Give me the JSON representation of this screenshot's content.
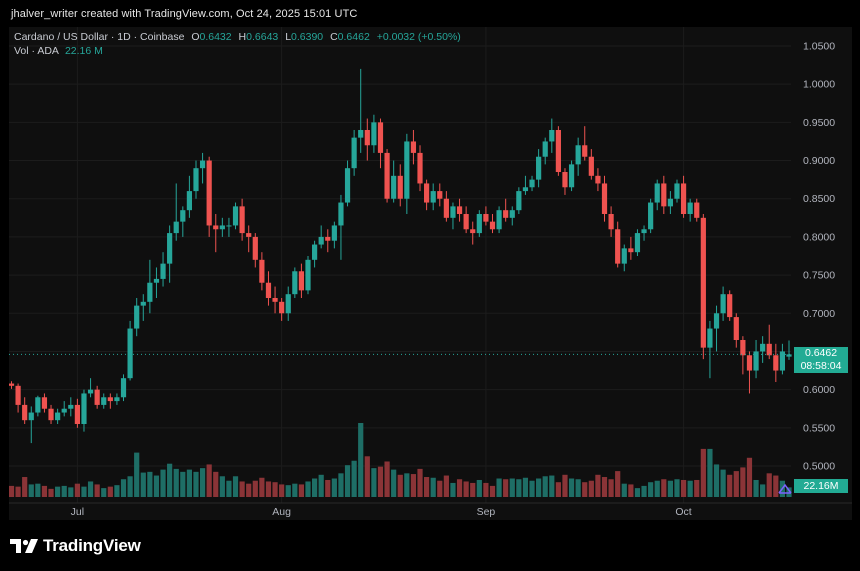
{
  "credit": "jhalver_writer created with TradingView.com, Oct 24, 2025 15:01 UTC",
  "legend": {
    "symbol": "Cardano / US Dollar · 1D · Coinbase",
    "open_label": "O",
    "open": "0.6432",
    "high_label": "H",
    "high": "0.6643",
    "low_label": "L",
    "low": "0.6390",
    "close_label": "C",
    "close": "0.6462",
    "change": "+0.0032 (+0.50%)",
    "vol_label": "Vol · ADA",
    "vol": "22.16 M"
  },
  "price_tag": {
    "price": "0.6462",
    "countdown": "08:58:04"
  },
  "volume_tag": "22.16M",
  "brand": "TradingView",
  "colors": {
    "up": "#26a69a",
    "down": "#ef5350",
    "up_vol": "#1e6e66",
    "down_vol": "#8b3437",
    "tag": "#22ab94"
  },
  "chart_data": {
    "type": "candlestick",
    "ylim": [
      0.46,
      1.07
    ],
    "yticks": [
      "1.0500",
      "1.0000",
      "0.9500",
      "0.9000",
      "0.8500",
      "0.8000",
      "0.7500",
      "0.7000",
      "0.6500",
      "0.6000",
      "0.5500",
      "0.5000"
    ],
    "xticks": [
      {
        "label": "Jul",
        "index": 10
      },
      {
        "label": "Aug",
        "index": 41
      },
      {
        "label": "Sep",
        "index": 72
      },
      {
        "label": "Oct",
        "index": 102
      }
    ],
    "last_price": 0.6462,
    "candles": [
      [
        0.608,
        0.611,
        0.601,
        0.605
      ],
      [
        0.605,
        0.608,
        0.57,
        0.58
      ],
      [
        0.58,
        0.59,
        0.555,
        0.56
      ],
      [
        0.56,
        0.578,
        0.53,
        0.57
      ],
      [
        0.57,
        0.592,
        0.565,
        0.59
      ],
      [
        0.59,
        0.595,
        0.57,
        0.575
      ],
      [
        0.575,
        0.58,
        0.555,
        0.56
      ],
      [
        0.56,
        0.575,
        0.555,
        0.57
      ],
      [
        0.57,
        0.585,
        0.565,
        0.575
      ],
      [
        0.575,
        0.59,
        0.565,
        0.58
      ],
      [
        0.58,
        0.588,
        0.55,
        0.555
      ],
      [
        0.555,
        0.6,
        0.545,
        0.595
      ],
      [
        0.595,
        0.615,
        0.59,
        0.6
      ],
      [
        0.6,
        0.605,
        0.575,
        0.58
      ],
      [
        0.58,
        0.595,
        0.575,
        0.59
      ],
      [
        0.59,
        0.595,
        0.575,
        0.585
      ],
      [
        0.585,
        0.595,
        0.58,
        0.59
      ],
      [
        0.59,
        0.62,
        0.585,
        0.615
      ],
      [
        0.615,
        0.69,
        0.612,
        0.68
      ],
      [
        0.68,
        0.72,
        0.67,
        0.71
      ],
      [
        0.71,
        0.725,
        0.69,
        0.715
      ],
      [
        0.715,
        0.77,
        0.7,
        0.74
      ],
      [
        0.74,
        0.76,
        0.72,
        0.745
      ],
      [
        0.745,
        0.78,
        0.735,
        0.765
      ],
      [
        0.765,
        0.815,
        0.74,
        0.805
      ],
      [
        0.805,
        0.87,
        0.795,
        0.82
      ],
      [
        0.82,
        0.84,
        0.8,
        0.835
      ],
      [
        0.835,
        0.88,
        0.825,
        0.86
      ],
      [
        0.86,
        0.9,
        0.85,
        0.89
      ],
      [
        0.89,
        0.91,
        0.87,
        0.9
      ],
      [
        0.9,
        0.905,
        0.8,
        0.815
      ],
      [
        0.815,
        0.83,
        0.78,
        0.81
      ],
      [
        0.81,
        0.825,
        0.8,
        0.815
      ],
      [
        0.815,
        0.825,
        0.8,
        0.815
      ],
      [
        0.815,
        0.845,
        0.81,
        0.84
      ],
      [
        0.84,
        0.85,
        0.795,
        0.805
      ],
      [
        0.805,
        0.815,
        0.78,
        0.8
      ],
      [
        0.8,
        0.805,
        0.76,
        0.77
      ],
      [
        0.77,
        0.78,
        0.73,
        0.74
      ],
      [
        0.74,
        0.755,
        0.71,
        0.72
      ],
      [
        0.72,
        0.735,
        0.7,
        0.715
      ],
      [
        0.715,
        0.72,
        0.69,
        0.7
      ],
      [
        0.7,
        0.735,
        0.69,
        0.725
      ],
      [
        0.725,
        0.76,
        0.72,
        0.755
      ],
      [
        0.755,
        0.765,
        0.72,
        0.73
      ],
      [
        0.73,
        0.775,
        0.725,
        0.77
      ],
      [
        0.77,
        0.795,
        0.76,
        0.79
      ],
      [
        0.79,
        0.815,
        0.785,
        0.8
      ],
      [
        0.8,
        0.81,
        0.78,
        0.795
      ],
      [
        0.795,
        0.82,
        0.785,
        0.815
      ],
      [
        0.815,
        0.855,
        0.77,
        0.845
      ],
      [
        0.845,
        0.9,
        0.84,
        0.89
      ],
      [
        0.89,
        0.94,
        0.88,
        0.93
      ],
      [
        0.93,
        1.02,
        0.91,
        0.94
      ],
      [
        0.94,
        0.955,
        0.9,
        0.92
      ],
      [
        0.92,
        0.96,
        0.91,
        0.95
      ],
      [
        0.95,
        0.955,
        0.89,
        0.91
      ],
      [
        0.91,
        0.915,
        0.845,
        0.85
      ],
      [
        0.85,
        0.9,
        0.845,
        0.88
      ],
      [
        0.88,
        0.895,
        0.84,
        0.85
      ],
      [
        0.85,
        0.935,
        0.83,
        0.925
      ],
      [
        0.925,
        0.94,
        0.895,
        0.91
      ],
      [
        0.91,
        0.92,
        0.86,
        0.87
      ],
      [
        0.87,
        0.875,
        0.835,
        0.845
      ],
      [
        0.845,
        0.87,
        0.835,
        0.86
      ],
      [
        0.86,
        0.87,
        0.84,
        0.85
      ],
      [
        0.85,
        0.86,
        0.82,
        0.825
      ],
      [
        0.825,
        0.845,
        0.81,
        0.84
      ],
      [
        0.84,
        0.85,
        0.82,
        0.83
      ],
      [
        0.83,
        0.84,
        0.805,
        0.81
      ],
      [
        0.81,
        0.82,
        0.79,
        0.805
      ],
      [
        0.805,
        0.835,
        0.8,
        0.83
      ],
      [
        0.83,
        0.84,
        0.815,
        0.82
      ],
      [
        0.82,
        0.83,
        0.805,
        0.81
      ],
      [
        0.81,
        0.84,
        0.805,
        0.835
      ],
      [
        0.835,
        0.85,
        0.82,
        0.825
      ],
      [
        0.825,
        0.84,
        0.815,
        0.835
      ],
      [
        0.835,
        0.865,
        0.83,
        0.86
      ],
      [
        0.86,
        0.88,
        0.855,
        0.865
      ],
      [
        0.865,
        0.88,
        0.86,
        0.875
      ],
      [
        0.875,
        0.915,
        0.865,
        0.905
      ],
      [
        0.905,
        0.93,
        0.895,
        0.925
      ],
      [
        0.925,
        0.955,
        0.91,
        0.94
      ],
      [
        0.94,
        0.945,
        0.88,
        0.885
      ],
      [
        0.885,
        0.89,
        0.855,
        0.865
      ],
      [
        0.865,
        0.9,
        0.86,
        0.895
      ],
      [
        0.895,
        0.93,
        0.88,
        0.92
      ],
      [
        0.92,
        0.945,
        0.9,
        0.905
      ],
      [
        0.905,
        0.915,
        0.875,
        0.88
      ],
      [
        0.88,
        0.89,
        0.86,
        0.87
      ],
      [
        0.87,
        0.88,
        0.82,
        0.83
      ],
      [
        0.83,
        0.84,
        0.8,
        0.81
      ],
      [
        0.81,
        0.82,
        0.76,
        0.765
      ],
      [
        0.765,
        0.79,
        0.755,
        0.785
      ],
      [
        0.785,
        0.8,
        0.77,
        0.78
      ],
      [
        0.78,
        0.81,
        0.775,
        0.805
      ],
      [
        0.805,
        0.815,
        0.795,
        0.81
      ],
      [
        0.81,
        0.85,
        0.805,
        0.845
      ],
      [
        0.845,
        0.875,
        0.835,
        0.87
      ],
      [
        0.87,
        0.88,
        0.83,
        0.84
      ],
      [
        0.84,
        0.86,
        0.83,
        0.85
      ],
      [
        0.85,
        0.875,
        0.845,
        0.87
      ],
      [
        0.87,
        0.88,
        0.825,
        0.83
      ],
      [
        0.83,
        0.85,
        0.82,
        0.845
      ],
      [
        0.845,
        0.85,
        0.82,
        0.825
      ],
      [
        0.825,
        0.83,
        0.64,
        0.655
      ],
      [
        0.655,
        0.69,
        0.615,
        0.68
      ],
      [
        0.68,
        0.71,
        0.65,
        0.7
      ],
      [
        0.7,
        0.735,
        0.69,
        0.725
      ],
      [
        0.725,
        0.73,
        0.69,
        0.695
      ],
      [
        0.695,
        0.7,
        0.655,
        0.665
      ],
      [
        0.665,
        0.67,
        0.62,
        0.645
      ],
      [
        0.645,
        0.65,
        0.595,
        0.625
      ],
      [
        0.625,
        0.665,
        0.615,
        0.65
      ],
      [
        0.65,
        0.67,
        0.635,
        0.66
      ],
      [
        0.66,
        0.685,
        0.64,
        0.645
      ],
      [
        0.645,
        0.66,
        0.61,
        0.625
      ],
      [
        0.625,
        0.66,
        0.62,
        0.65
      ],
      [
        0.6432,
        0.6643,
        0.639,
        0.6462
      ]
    ],
    "volume_ylim": [
      0,
      1
    ],
    "volumes": [
      0.15,
      0.14,
      0.27,
      0.17,
      0.18,
      0.15,
      0.11,
      0.14,
      0.15,
      0.13,
      0.18,
      0.14,
      0.21,
      0.17,
      0.12,
      0.14,
      0.16,
      0.24,
      0.28,
      0.6,
      0.33,
      0.34,
      0.29,
      0.37,
      0.45,
      0.38,
      0.34,
      0.37,
      0.34,
      0.39,
      0.44,
      0.34,
      0.28,
      0.22,
      0.28,
      0.21,
      0.18,
      0.22,
      0.26,
      0.21,
      0.2,
      0.17,
      0.16,
      0.18,
      0.17,
      0.21,
      0.25,
      0.3,
      0.23,
      0.25,
      0.32,
      0.43,
      0.49,
      1.0,
      0.55,
      0.39,
      0.41,
      0.48,
      0.37,
      0.3,
      0.32,
      0.31,
      0.38,
      0.27,
      0.26,
      0.22,
      0.29,
      0.19,
      0.24,
      0.21,
      0.19,
      0.23,
      0.19,
      0.15,
      0.25,
      0.24,
      0.25,
      0.24,
      0.26,
      0.22,
      0.25,
      0.28,
      0.29,
      0.2,
      0.3,
      0.25,
      0.24,
      0.2,
      0.22,
      0.3,
      0.27,
      0.24,
      0.35,
      0.18,
      0.17,
      0.12,
      0.15,
      0.2,
      0.22,
      0.24,
      0.22,
      0.24,
      0.23,
      0.22,
      0.23,
      0.65,
      0.65,
      0.44,
      0.37,
      0.3,
      0.35,
      0.4,
      0.53,
      0.23,
      0.17,
      0.32,
      0.29,
      0.22,
      0.13
    ]
  }
}
